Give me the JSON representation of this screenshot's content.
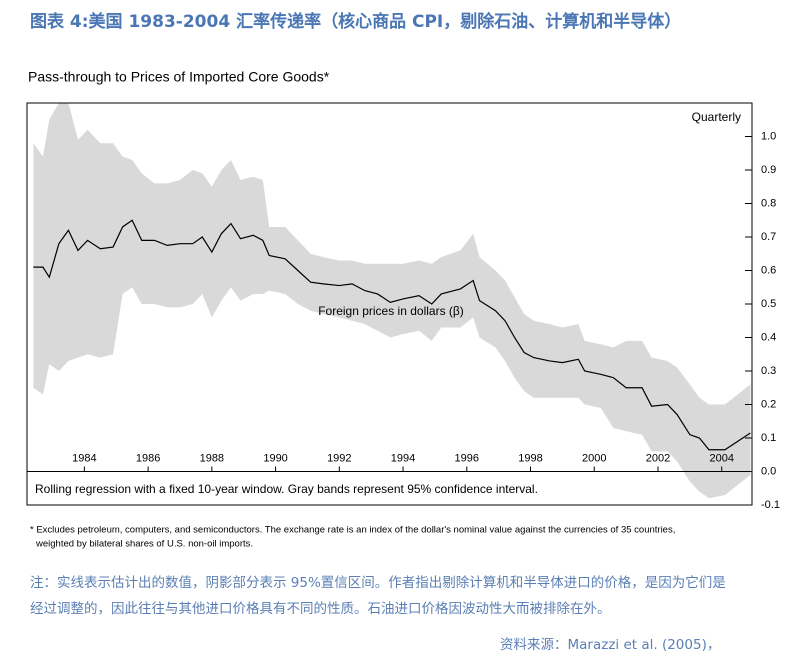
{
  "chart_data": {
    "type": "line",
    "heading": "图表 4:美国 1983-2004 汇率传递率（核心商品 CPI，剔除石油、计算机和半导体）",
    "title": "Pass-through to Prices of Imported Core Goods*",
    "frequency_label": "Quarterly",
    "annotation": "Foreign prices in dollars (β)",
    "box_note": "Rolling regression with a fixed 10-year window. Gray bands represent 95% confidence interval.",
    "footnote": [
      "* Excludes petroleum, computers, and semiconductors.  The exchange rate is an index of the dollar's nominal value against the currencies of 35 countries,",
      "weighted by bilateral shares of U.S. non-oil imports."
    ],
    "note": [
      "注：实线表示估计出的数值，阴影部分表示 95%置信区间。作者指出剔除计算机和半导体进口的价格，是因为它们是",
      "经过调整的，因此往往与其他进口价格具有不同的性质。石油进口价格因波动性大而被排除在外。"
    ],
    "source": "资料来源：Marazzi et al. (2005)，",
    "x": [
      1982.4,
      1982.7,
      1982.9,
      1983.2,
      1983.5,
      1983.8,
      1984.1,
      1984.5,
      1984.9,
      1985.2,
      1985.5,
      1985.8,
      1986.2,
      1986.6,
      1987.0,
      1987.4,
      1987.7,
      1988.0,
      1988.3,
      1988.6,
      1988.9,
      1989.3,
      1989.6,
      1989.8,
      1990.3,
      1990.7,
      1991.1,
      1991.5,
      1992.0,
      1992.4,
      1992.8,
      1993.2,
      1993.6,
      1994.0,
      1994.5,
      1994.9,
      1995.2,
      1995.8,
      1996.2,
      1996.4,
      1996.9,
      1997.2,
      1997.5,
      1997.8,
      1998.1,
      1998.6,
      1999.0,
      1999.5,
      1999.7,
      2000.2,
      2000.6,
      2001.0,
      2001.5,
      2001.8,
      2002.3,
      2002.6,
      2003.0,
      2003.3,
      2003.6,
      2004.1,
      2004.5,
      2004.9
    ],
    "series": [
      {
        "color": "#000000",
        "values": [
          0.61,
          0.61,
          0.58,
          0.68,
          0.72,
          0.66,
          0.69,
          0.665,
          0.67,
          0.73,
          0.75,
          0.69,
          0.69,
          0.675,
          0.68,
          0.68,
          0.7,
          0.655,
          0.71,
          0.74,
          0.695,
          0.705,
          0.69,
          0.645,
          0.635,
          0.6,
          0.565,
          0.56,
          0.555,
          0.56,
          0.54,
          0.53,
          0.505,
          0.515,
          0.525,
          0.5,
          0.53,
          0.545,
          0.57,
          0.51,
          0.48,
          0.45,
          0.4,
          0.355,
          0.34,
          0.33,
          0.325,
          0.335,
          0.3,
          0.29,
          0.28,
          0.25,
          0.25,
          0.195,
          0.2,
          0.17,
          0.11,
          0.1,
          0.065,
          0.065,
          0.09,
          0.115
        ]
      }
    ],
    "band": {
      "color": "#d9d9d9",
      "upper": [
        0.98,
        0.94,
        1.05,
        1.1,
        1.1,
        0.99,
        1.02,
        0.98,
        0.98,
        0.94,
        0.93,
        0.89,
        0.86,
        0.86,
        0.87,
        0.9,
        0.89,
        0.85,
        0.9,
        0.93,
        0.87,
        0.88,
        0.87,
        0.73,
        0.73,
        0.69,
        0.65,
        0.64,
        0.63,
        0.63,
        0.62,
        0.62,
        0.62,
        0.62,
        0.63,
        0.62,
        0.64,
        0.66,
        0.71,
        0.64,
        0.6,
        0.57,
        0.52,
        0.47,
        0.45,
        0.44,
        0.43,
        0.44,
        0.39,
        0.38,
        0.37,
        0.39,
        0.39,
        0.34,
        0.33,
        0.31,
        0.26,
        0.22,
        0.2,
        0.2,
        0.23,
        0.26
      ],
      "lower": [
        0.25,
        0.23,
        0.32,
        0.3,
        0.33,
        0.34,
        0.35,
        0.34,
        0.35,
        0.53,
        0.55,
        0.5,
        0.5,
        0.49,
        0.49,
        0.5,
        0.53,
        0.46,
        0.51,
        0.55,
        0.51,
        0.53,
        0.53,
        0.54,
        0.53,
        0.5,
        0.48,
        0.47,
        0.46,
        0.45,
        0.44,
        0.42,
        0.4,
        0.41,
        0.42,
        0.39,
        0.43,
        0.43,
        0.46,
        0.4,
        0.37,
        0.33,
        0.28,
        0.24,
        0.22,
        0.22,
        0.22,
        0.22,
        0.2,
        0.19,
        0.13,
        0.12,
        0.11,
        0.06,
        0.06,
        0.03,
        -0.03,
        -0.06,
        -0.08,
        -0.07,
        -0.04,
        -0.01
      ]
    },
    "xlim": [
      1982.2,
      2004.95
    ],
    "xticks": [
      1984,
      1986,
      1988,
      1990,
      1992,
      1994,
      1996,
      1998,
      2000,
      2002,
      2004
    ],
    "ylim": [
      -0.1,
      1.1
    ],
    "yticks": [
      -0.1,
      {
        "value": 0,
        "label": "0.0"
      },
      0.1,
      0.2,
      0.3,
      0.4,
      0.5,
      0.6,
      0.7,
      0.8,
      0.9,
      {
        "value": 1,
        "label": "1.0"
      }
    ]
  }
}
